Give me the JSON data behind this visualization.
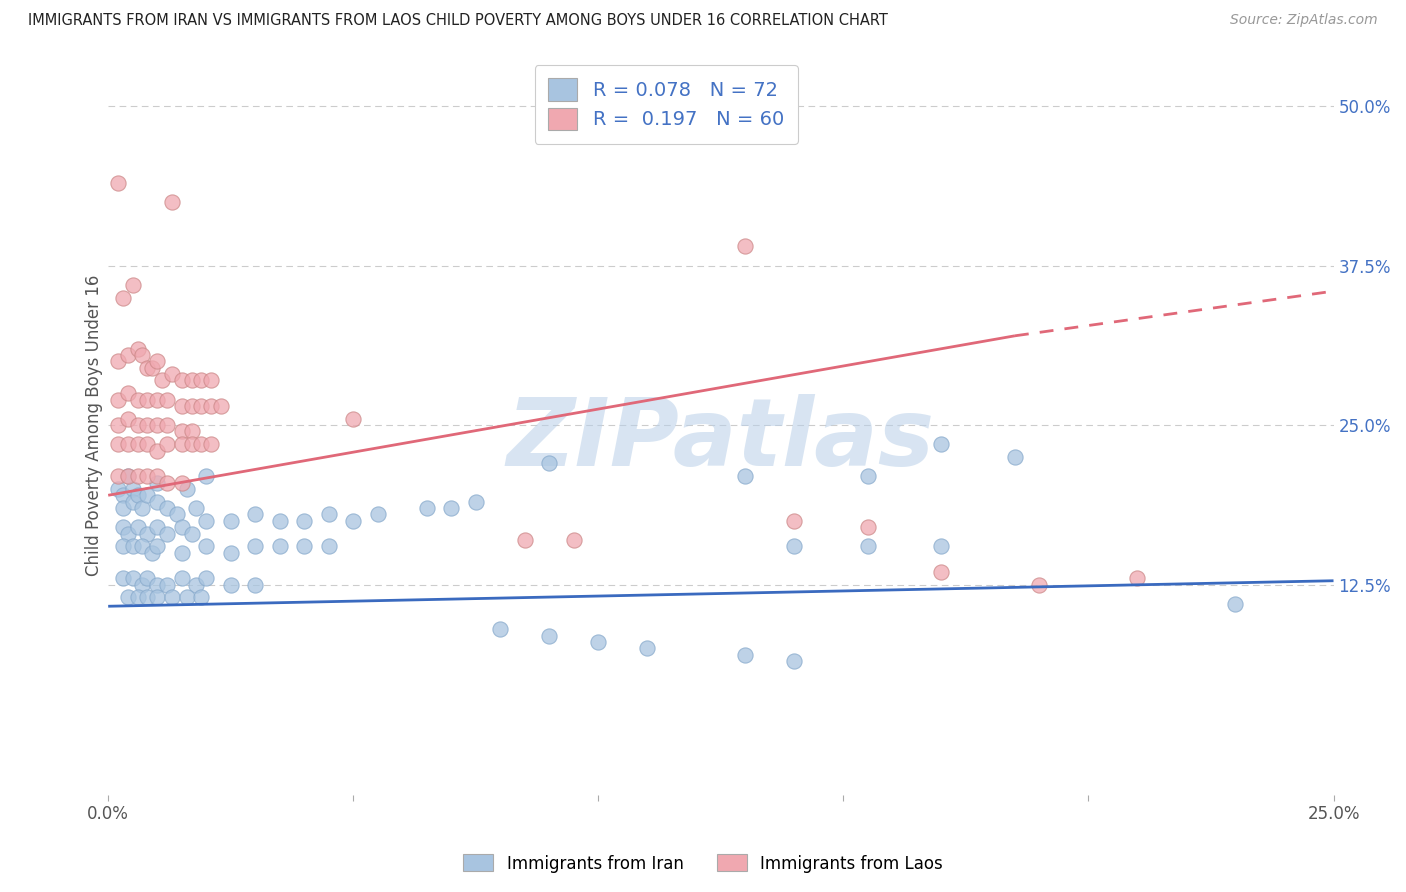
{
  "title": "IMMIGRANTS FROM IRAN VS IMMIGRANTS FROM LAOS CHILD POVERTY AMONG BOYS UNDER 16 CORRELATION CHART",
  "source": "Source: ZipAtlas.com",
  "ylabel": "Child Poverty Among Boys Under 16",
  "xlim": [
    0.0,
    0.25
  ],
  "ylim": [
    -0.04,
    0.54
  ],
  "iran_color": "#a8c4e0",
  "laos_color": "#f0a8b0",
  "iran_line_color": "#3a6abf",
  "laos_line_color": "#e06878",
  "watermark": "ZIPatlas",
  "background_color": "#ffffff",
  "grid_color": "#cccccc",
  "iran_scatter": [
    [
      0.002,
      0.2
    ],
    [
      0.003,
      0.195
    ],
    [
      0.003,
      0.185
    ],
    [
      0.004,
      0.21
    ],
    [
      0.005,
      0.2
    ],
    [
      0.005,
      0.19
    ],
    [
      0.006,
      0.195
    ],
    [
      0.007,
      0.185
    ],
    [
      0.008,
      0.195
    ],
    [
      0.01,
      0.205
    ],
    [
      0.01,
      0.19
    ],
    [
      0.012,
      0.185
    ],
    [
      0.014,
      0.18
    ],
    [
      0.016,
      0.2
    ],
    [
      0.018,
      0.185
    ],
    [
      0.02,
      0.21
    ],
    [
      0.003,
      0.17
    ],
    [
      0.004,
      0.165
    ],
    [
      0.006,
      0.17
    ],
    [
      0.008,
      0.165
    ],
    [
      0.01,
      0.17
    ],
    [
      0.012,
      0.165
    ],
    [
      0.015,
      0.17
    ],
    [
      0.017,
      0.165
    ],
    [
      0.02,
      0.175
    ],
    [
      0.025,
      0.175
    ],
    [
      0.03,
      0.18
    ],
    [
      0.035,
      0.175
    ],
    [
      0.04,
      0.175
    ],
    [
      0.045,
      0.18
    ],
    [
      0.05,
      0.175
    ],
    [
      0.055,
      0.18
    ],
    [
      0.065,
      0.185
    ],
    [
      0.07,
      0.185
    ],
    [
      0.075,
      0.19
    ],
    [
      0.003,
      0.155
    ],
    [
      0.005,
      0.155
    ],
    [
      0.007,
      0.155
    ],
    [
      0.009,
      0.15
    ],
    [
      0.01,
      0.155
    ],
    [
      0.015,
      0.15
    ],
    [
      0.02,
      0.155
    ],
    [
      0.025,
      0.15
    ],
    [
      0.03,
      0.155
    ],
    [
      0.035,
      0.155
    ],
    [
      0.04,
      0.155
    ],
    [
      0.045,
      0.155
    ],
    [
      0.003,
      0.13
    ],
    [
      0.005,
      0.13
    ],
    [
      0.007,
      0.125
    ],
    [
      0.008,
      0.13
    ],
    [
      0.01,
      0.125
    ],
    [
      0.012,
      0.125
    ],
    [
      0.015,
      0.13
    ],
    [
      0.018,
      0.125
    ],
    [
      0.02,
      0.13
    ],
    [
      0.025,
      0.125
    ],
    [
      0.03,
      0.125
    ],
    [
      0.004,
      0.115
    ],
    [
      0.006,
      0.115
    ],
    [
      0.008,
      0.115
    ],
    [
      0.01,
      0.115
    ],
    [
      0.013,
      0.115
    ],
    [
      0.016,
      0.115
    ],
    [
      0.019,
      0.115
    ],
    [
      0.09,
      0.22
    ],
    [
      0.13,
      0.21
    ],
    [
      0.155,
      0.21
    ],
    [
      0.17,
      0.235
    ],
    [
      0.185,
      0.225
    ],
    [
      0.14,
      0.155
    ],
    [
      0.155,
      0.155
    ],
    [
      0.17,
      0.155
    ],
    [
      0.08,
      0.09
    ],
    [
      0.09,
      0.085
    ],
    [
      0.1,
      0.08
    ],
    [
      0.11,
      0.075
    ],
    [
      0.13,
      0.07
    ],
    [
      0.14,
      0.065
    ],
    [
      0.23,
      0.11
    ]
  ],
  "laos_scatter": [
    [
      0.002,
      0.44
    ],
    [
      0.013,
      0.425
    ],
    [
      0.003,
      0.35
    ],
    [
      0.005,
      0.36
    ],
    [
      0.002,
      0.3
    ],
    [
      0.004,
      0.305
    ],
    [
      0.006,
      0.31
    ],
    [
      0.007,
      0.305
    ],
    [
      0.008,
      0.295
    ],
    [
      0.009,
      0.295
    ],
    [
      0.01,
      0.3
    ],
    [
      0.011,
      0.285
    ],
    [
      0.013,
      0.29
    ],
    [
      0.015,
      0.285
    ],
    [
      0.017,
      0.285
    ],
    [
      0.019,
      0.285
    ],
    [
      0.021,
      0.285
    ],
    [
      0.002,
      0.27
    ],
    [
      0.004,
      0.275
    ],
    [
      0.006,
      0.27
    ],
    [
      0.008,
      0.27
    ],
    [
      0.01,
      0.27
    ],
    [
      0.012,
      0.27
    ],
    [
      0.015,
      0.265
    ],
    [
      0.017,
      0.265
    ],
    [
      0.019,
      0.265
    ],
    [
      0.021,
      0.265
    ],
    [
      0.023,
      0.265
    ],
    [
      0.002,
      0.25
    ],
    [
      0.004,
      0.255
    ],
    [
      0.006,
      0.25
    ],
    [
      0.008,
      0.25
    ],
    [
      0.01,
      0.25
    ],
    [
      0.012,
      0.25
    ],
    [
      0.015,
      0.245
    ],
    [
      0.017,
      0.245
    ],
    [
      0.002,
      0.235
    ],
    [
      0.004,
      0.235
    ],
    [
      0.006,
      0.235
    ],
    [
      0.008,
      0.235
    ],
    [
      0.01,
      0.23
    ],
    [
      0.012,
      0.235
    ],
    [
      0.015,
      0.235
    ],
    [
      0.017,
      0.235
    ],
    [
      0.019,
      0.235
    ],
    [
      0.021,
      0.235
    ],
    [
      0.002,
      0.21
    ],
    [
      0.004,
      0.21
    ],
    [
      0.006,
      0.21
    ],
    [
      0.008,
      0.21
    ],
    [
      0.01,
      0.21
    ],
    [
      0.012,
      0.205
    ],
    [
      0.015,
      0.205
    ],
    [
      0.05,
      0.255
    ],
    [
      0.13,
      0.39
    ],
    [
      0.17,
      0.135
    ],
    [
      0.19,
      0.125
    ],
    [
      0.21,
      0.13
    ],
    [
      0.085,
      0.16
    ],
    [
      0.095,
      0.16
    ],
    [
      0.14,
      0.175
    ],
    [
      0.155,
      0.17
    ]
  ]
}
